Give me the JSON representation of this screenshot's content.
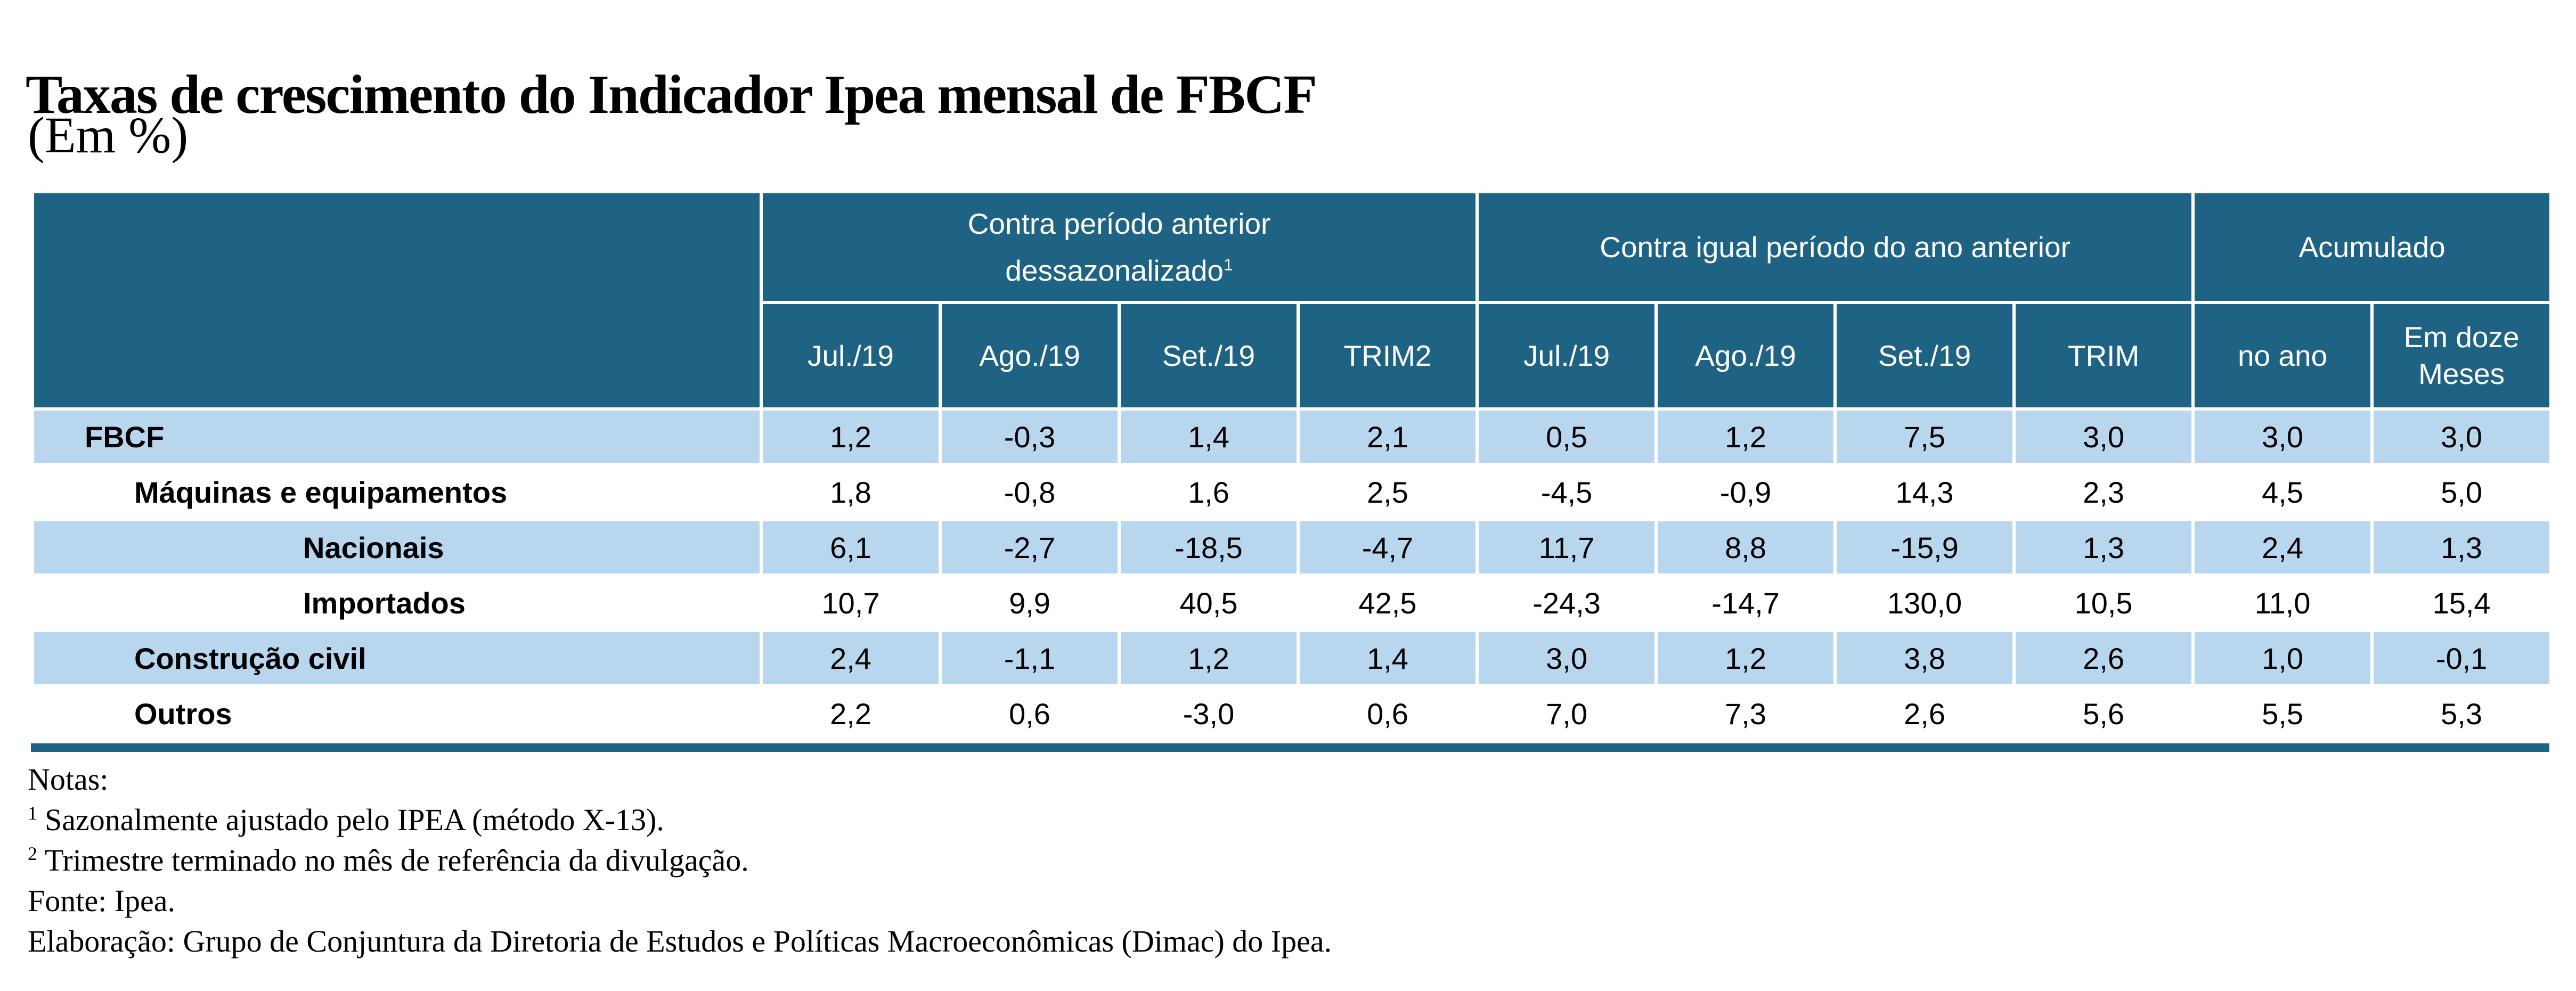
{
  "title": "Taxas de crescimento do Indicador Ipea mensal de FBCF",
  "subtitle": "(Em %)",
  "colors": {
    "header_bg": "#1E6284",
    "shaded_row_bg": "#B8D6ED",
    "header_text": "#FFFFFF",
    "body_text": "#000000"
  },
  "table": {
    "col_groups": [
      {
        "line1": "Contra período anterior",
        "line2": "dessazonalizado",
        "sup": "1",
        "span": 4
      },
      {
        "line1": "Contra igual período do ano anterior",
        "line2": "",
        "sup": "",
        "span": 4
      },
      {
        "line1": "Acumulado",
        "line2": "",
        "sup": "",
        "span": 2
      }
    ],
    "sub_headers": [
      "Jul./19",
      "Ago./19",
      "Set./19",
      "TRIM2",
      "Jul./19",
      "Ago./19",
      "Set./19",
      "TRIM",
      "no ano",
      "Em doze Meses"
    ],
    "rows": [
      {
        "label": "FBCF",
        "level": 1,
        "values": [
          "1,2",
          "-0,3",
          "1,4",
          "2,1",
          "0,5",
          "1,2",
          "7,5",
          "3,0",
          "3,0",
          "3,0"
        ]
      },
      {
        "label": "Máquinas e equipamentos",
        "level": 2,
        "values": [
          "1,8",
          "-0,8",
          "1,6",
          "2,5",
          "-4,5",
          "-0,9",
          "14,3",
          "2,3",
          "4,5",
          "5,0"
        ]
      },
      {
        "label": "Nacionais",
        "level": 3,
        "values": [
          "6,1",
          "-2,7",
          "-18,5",
          "-4,7",
          "11,7",
          "8,8",
          "-15,9",
          "1,3",
          "2,4",
          "1,3"
        ]
      },
      {
        "label": "Importados",
        "level": 3,
        "values": [
          "10,7",
          "9,9",
          "40,5",
          "42,5",
          "-24,3",
          "-14,7",
          "130,0",
          "10,5",
          "11,0",
          "15,4"
        ]
      },
      {
        "label": "Construção civil",
        "level": 2,
        "values": [
          "2,4",
          "-1,1",
          "1,2",
          "1,4",
          "3,0",
          "1,2",
          "3,8",
          "2,6",
          "1,0",
          "-0,1"
        ]
      },
      {
        "label": "Outros",
        "level": 2,
        "values": [
          "2,2",
          "0,6",
          "-3,0",
          "0,6",
          "7,0",
          "7,3",
          "2,6",
          "5,6",
          "5,5",
          "5,3"
        ]
      }
    ]
  },
  "notes": {
    "heading": "Notas:",
    "items": [
      {
        "sup": "1",
        "text": "Sazonalmente ajustado pelo IPEA (método X-13)."
      },
      {
        "sup": "2",
        "text": "Trimestre terminado no mês de referência da divulgação."
      }
    ],
    "source": "Fonte: Ipea.",
    "elaboration": "Elaboração: Grupo de Conjuntura da Diretoria de Estudos e Políticas Macroeconômicas (Dimac) do Ipea."
  }
}
